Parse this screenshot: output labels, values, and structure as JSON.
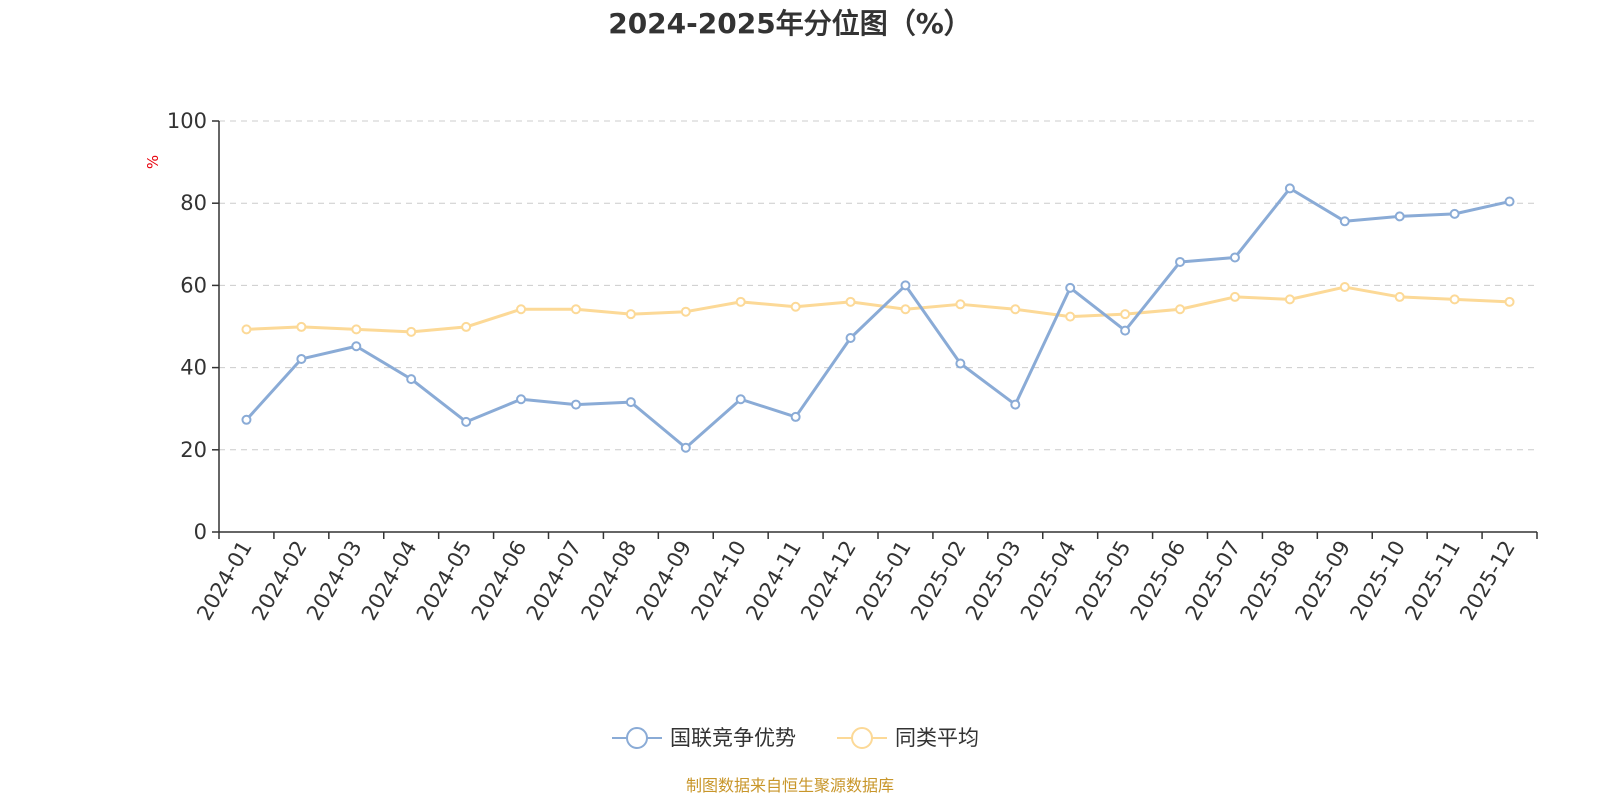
{
  "chart_data": {
    "type": "line",
    "title": "2024-2025年分位图（%）",
    "unit_label": "%",
    "ylim": [
      0,
      100
    ],
    "yticks": [
      0,
      20,
      40,
      60,
      80,
      100
    ],
    "grid": true,
    "legend_position": "bottom-center",
    "categories": [
      "2024-01",
      "2024-02",
      "2024-03",
      "2024-04",
      "2024-05",
      "2024-06",
      "2024-07",
      "2024-08",
      "2024-09",
      "2024-10",
      "2024-11",
      "2024-12",
      "2025-01",
      "2025-02",
      "2025-03",
      "2025-04",
      "2025-05",
      "2025-06",
      "2025-07",
      "2025-08",
      "2025-09",
      "2025-10",
      "2025-11",
      "2025-12"
    ],
    "series": [
      {
        "name": "国联竞争优势",
        "color": "#8aabd6",
        "values": [
          27.3,
          42.1,
          45.2,
          37.2,
          26.8,
          32.3,
          31.0,
          31.6,
          20.5,
          32.3,
          28.0,
          47.2,
          60.0,
          41.0,
          31.0,
          59.4,
          49.0,
          65.7,
          66.8,
          83.6,
          75.6,
          76.8,
          77.4,
          80.4
        ]
      },
      {
        "name": "同类平均",
        "color": "#fcd997",
        "values": [
          49.3,
          49.9,
          49.3,
          48.7,
          49.9,
          54.2,
          54.2,
          53.0,
          53.6,
          56.0,
          54.8,
          56.0,
          54.2,
          55.4,
          54.2,
          52.4,
          53.0,
          54.2,
          57.2,
          56.6,
          59.6,
          57.2,
          56.6,
          56.0
        ]
      }
    ]
  },
  "source_note": "制图数据来自恒生聚源数据库"
}
